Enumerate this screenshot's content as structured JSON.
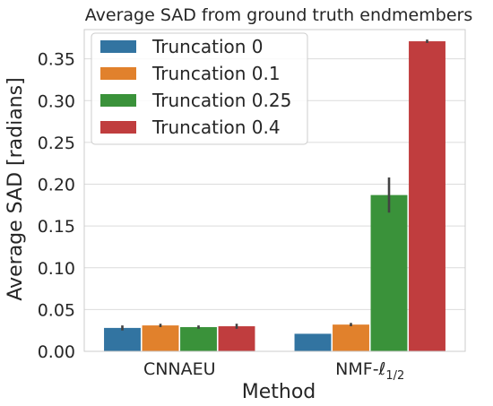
{
  "chart_data": {
    "type": "bar",
    "title": "Average SAD from ground truth endmembers",
    "xlabel": "Method",
    "ylabel": "Average SAD [radians]",
    "categories": [
      "CNNAEU",
      "NMF-ℓ"
    ],
    "category_subscripts": [
      "",
      "1/2"
    ],
    "ylim": [
      0,
      0.385
    ],
    "yticks": [
      0.0,
      0.05,
      0.1,
      0.15,
      0.2,
      0.25,
      0.3,
      0.35
    ],
    "ytick_labels": [
      "0.00",
      "0.05",
      "0.10",
      "0.15",
      "0.20",
      "0.25",
      "0.30",
      "0.35"
    ],
    "grid": true,
    "legend_position": "top-left",
    "series": [
      {
        "name": "Truncation 0",
        "color": "#3274a1",
        "values": [
          0.028,
          0.021
        ],
        "err": [
          0.003,
          0.0
        ]
      },
      {
        "name": "Truncation 0.1",
        "color": "#e1812c",
        "values": [
          0.031,
          0.032
        ],
        "err": [
          0.002,
          0.002
        ]
      },
      {
        "name": "Truncation 0.25",
        "color": "#3a923a",
        "values": [
          0.029,
          0.187
        ],
        "err": [
          0.002,
          0.021
        ]
      },
      {
        "name": "Truncation 0.4",
        "color": "#c03d3e",
        "values": [
          0.03,
          0.371
        ],
        "err": [
          0.003,
          0.002
        ]
      }
    ]
  }
}
